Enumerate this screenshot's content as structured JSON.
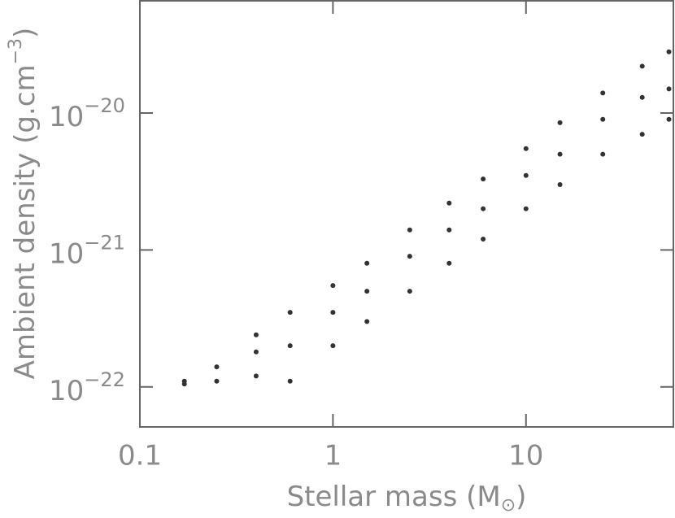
{
  "chart_data": {
    "type": "scatter",
    "xlabel": {
      "text": "Stellar mass (M",
      "sub": "⊙",
      "end": ")"
    },
    "ylabel": {
      "text": "Ambient density (g.cm",
      "sup": "−3",
      "end": ")"
    },
    "log_x": true,
    "log_y": true,
    "color": "#333333",
    "xlim": [
      0.1,
      58
    ],
    "ylim": [
      5.1e-23,
      6.6e-20
    ],
    "xticks": [
      0.1,
      1,
      10
    ],
    "yticks": [
      {
        "value": 1e-22,
        "label": "10",
        "exponent": "−22"
      },
      {
        "value": 1e-21,
        "label": "10",
        "exponent": "−21"
      },
      {
        "value": 1e-20,
        "label": "10",
        "exponent": "−20"
      }
    ],
    "x": [
      0.17,
      0.17,
      0.25,
      0.25,
      0.4,
      0.4,
      0.4,
      0.6,
      0.6,
      0.6,
      1,
      1,
      1,
      1.5,
      1.5,
      1.5,
      2.5,
      2.5,
      2.5,
      4,
      4,
      4,
      6,
      6,
      6,
      10,
      10,
      10,
      15,
      15,
      15,
      25,
      25,
      25,
      40,
      40,
      40,
      55,
      55,
      55
    ],
    "y": [
      1.05e-22,
      1.1e-22,
      1.1e-22,
      1.4e-22,
      1.2e-22,
      1.8e-22,
      2.4e-22,
      1.1e-22,
      2e-22,
      3.5e-22,
      2e-22,
      3.5e-22,
      5.5e-22,
      3e-22,
      5e-22,
      8e-22,
      5e-22,
      9e-22,
      1.4e-21,
      8e-22,
      1.4e-21,
      2.2e-21,
      1.2e-21,
      2e-21,
      3.3e-21,
      2e-21,
      3.5e-21,
      5.5e-21,
      3e-21,
      5e-21,
      8.5e-21,
      5e-21,
      9e-21,
      1.4e-20,
      7e-21,
      1.3e-20,
      2.2e-20,
      9e-21,
      1.5e-20,
      2.8e-20
    ]
  }
}
